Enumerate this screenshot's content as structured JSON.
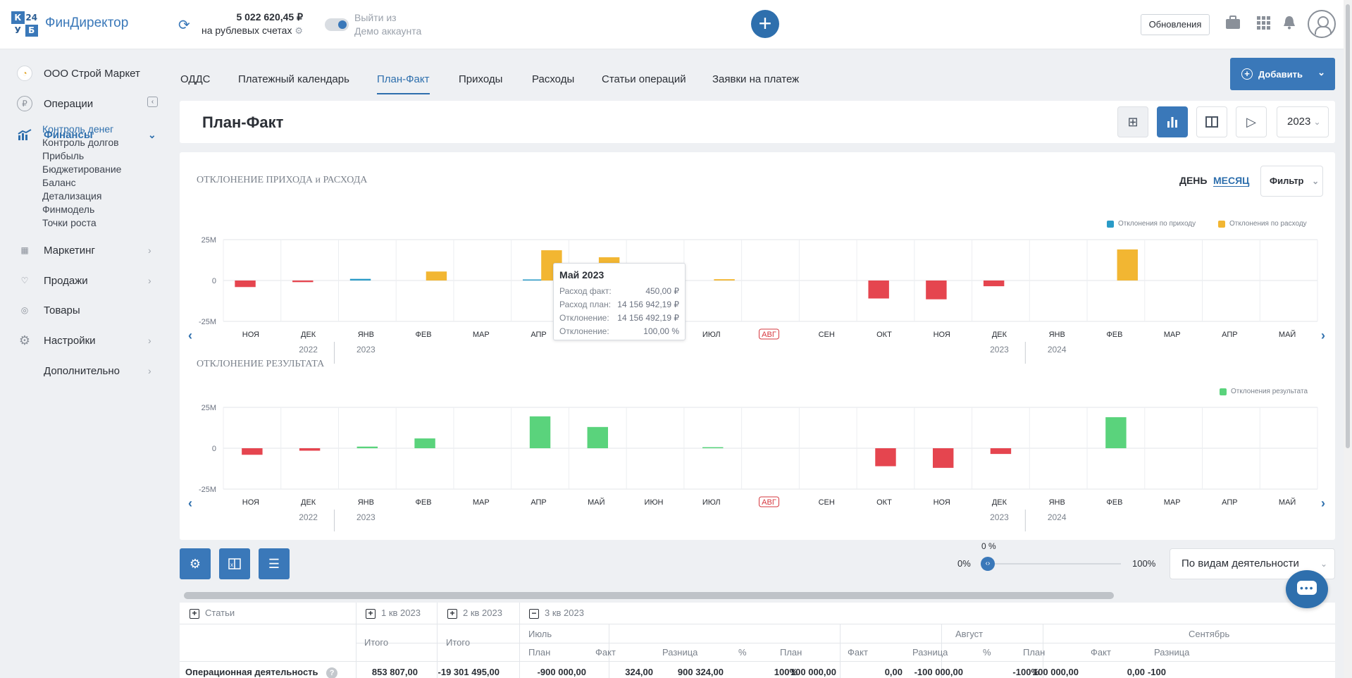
{
  "header": {
    "logo_cells": [
      "К",
      "24",
      "У",
      "Б"
    ],
    "app_name": "ФинДиректор",
    "balance_amount": "5 022 620,45 ₽",
    "balance_caption": "на рублевых счетах",
    "demo_line1": "Выйти из",
    "demo_line2": "Демо аккаунта",
    "updates_label": "Обновления",
    "icons": [
      "refresh-icon",
      "gear-icon",
      "plus-icon",
      "briefcase-icon",
      "apps-grid-icon",
      "bell-icon",
      "user-avatar-icon"
    ]
  },
  "sidebar": {
    "company": "ООО Строй Маркет",
    "items": [
      {
        "label": "Операции"
      },
      {
        "label": "Финансы"
      },
      {
        "label": "Маркетинг"
      },
      {
        "label": "Продажи"
      },
      {
        "label": "Товары"
      },
      {
        "label": "Настройки"
      },
      {
        "label": "Дополнительно"
      }
    ],
    "finance_sub": [
      "Контроль денег",
      "Контроль долгов",
      "Прибыль",
      "Бюджетирование",
      "Баланс",
      "Детализация",
      "Финмодель",
      "Точки роста"
    ]
  },
  "tabs": [
    "ОДДС",
    "Платежный календарь",
    "План-Факт",
    "Приходы",
    "Расходы",
    "Статьи операций",
    "Заявки на платеж"
  ],
  "add_button": "Добавить",
  "page_title": "План-Факт",
  "year": "2023",
  "chart1": {
    "title": "ОТКЛОНЕНИЕ ПРИХОДА и РАСХОДА",
    "period_day": "ДЕНЬ",
    "period_month": "МЕСЯЦ",
    "filter": "Фильтр",
    "legend_income": "Отклонения по приходу",
    "legend_expense": "Отклонения по расходу"
  },
  "chart2": {
    "title": "ОТКЛОНЕНИЕ РЕЗУЛЬТАТА",
    "legend": "Отклонения результата"
  },
  "axis": {
    "y_ticks": [
      "25M",
      "0",
      "-25M"
    ],
    "months": [
      "НОЯ",
      "ДЕК",
      "ЯНВ",
      "ФЕВ",
      "МАР",
      "АПР",
      "МАЙ",
      "ИЮН",
      "ИЮЛ",
      "АВГ",
      "СЕН",
      "ОКТ",
      "НОЯ",
      "ДЕК",
      "ЯНВ",
      "ФЕВ",
      "МАР",
      "АПР",
      "МАЙ"
    ],
    "years": [
      "2022",
      "2023",
      "2023",
      "2024"
    ]
  },
  "tooltip": {
    "title": "Май 2023",
    "rows": [
      {
        "label": "Расход факт:",
        "value": "450,00 ₽"
      },
      {
        "label": "Расход план:",
        "value": "14 156 942,19 ₽"
      },
      {
        "label": "Отклонение:",
        "value": "14 156 492,19 ₽"
      },
      {
        "label": "Отклонение:",
        "value": "100,00 %"
      }
    ]
  },
  "chart_data": [
    {
      "type": "bar",
      "title": "ОТКЛОНЕНИЕ ПРИХОДА и РАСХОДА",
      "categories": [
        "НОЯ 2022",
        "ДЕК 2022",
        "ЯНВ 2023",
        "ФЕВ 2023",
        "МАР 2023",
        "АПР 2023",
        "МАЙ 2023",
        "ИЮН 2023",
        "ИЮЛ 2023",
        "АВГ 2023",
        "СЕН 2023",
        "ОКТ 2023",
        "НОЯ 2023",
        "ДЕК 2023",
        "ЯНВ 2024",
        "ФЕВ 2024",
        "МАР 2024",
        "АПР 2024",
        "МАЙ 2024"
      ],
      "series": [
        {
          "name": "Отклонения по приходу",
          "color": "#2a9bc7",
          "values": [
            -4,
            -1,
            1,
            0,
            0,
            0.5,
            0,
            0,
            0,
            0,
            0,
            -11,
            -11.5,
            -3.5,
            0,
            0,
            0,
            0,
            0
          ]
        },
        {
          "name": "Отклонения по расходу",
          "color": "#f2b632",
          "values": [
            0,
            0,
            0,
            5.5,
            0,
            18.5,
            14.2,
            0,
            0.8,
            0,
            0,
            0,
            0,
            0,
            0,
            19,
            0,
            0,
            0
          ]
        }
      ],
      "ylim": [
        -25,
        25
      ],
      "highlight": "АВГ"
    },
    {
      "type": "bar",
      "title": "ОТКЛОНЕНИЕ РЕЗУЛЬТАТА",
      "categories": [
        "НОЯ 2022",
        "ДЕК 2022",
        "ЯНВ 2023",
        "ФЕВ 2023",
        "МАР 2023",
        "АПР 2023",
        "МАЙ 2023",
        "ИЮН 2023",
        "ИЮЛ 2023",
        "АВГ 2023",
        "СЕН 2023",
        "ОКТ 2023",
        "НОЯ 2023",
        "ДЕК 2023",
        "ЯНВ 2024",
        "ФЕВ 2024",
        "МАР 2024",
        "АПР 2024",
        "МАЙ 2024"
      ],
      "series": [
        {
          "name": "Отклонения результата",
          "color": "#5ad37c",
          "values": [
            -4,
            -1.5,
            1,
            6,
            0,
            19.5,
            13,
            0,
            0.5,
            0,
            0,
            -11,
            -12,
            -3.5,
            0,
            19,
            0,
            0,
            0
          ]
        }
      ],
      "ylim": [
        -25,
        25
      ]
    }
  ],
  "toolbar": {
    "slider_top": "0 %",
    "slider_min": "0%",
    "slider_max": "100%",
    "group_select": "По видам деятельности"
  },
  "table": {
    "col_articles": "Статьи",
    "q1": "1 кв 2023",
    "q2": "2 кв 2023",
    "q3": "3 кв 2023",
    "total": "Итого",
    "months": [
      "Июль",
      "Август",
      "Сентябрь"
    ],
    "sub_headers": [
      "План",
      "Факт",
      "Разница",
      "%"
    ],
    "row": {
      "label": "Операционная деятельность",
      "values": [
        "853 807,00",
        "-19 301 495,00",
        "-900 000,00",
        "324,00",
        "900 324,00",
        "100%",
        "100 000,00",
        "0,00",
        "-100 000,00",
        "-100%",
        "100 000,00",
        "0,00",
        "-100"
      ]
    }
  }
}
